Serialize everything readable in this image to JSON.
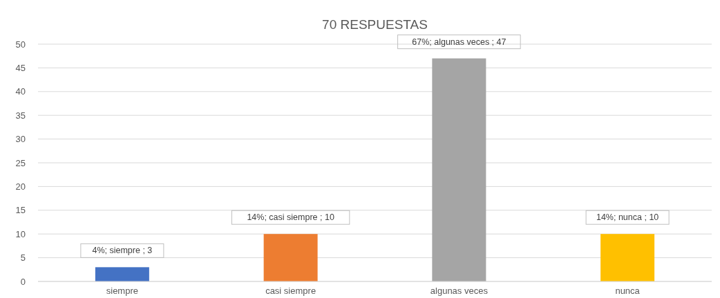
{
  "chart_data": {
    "type": "bar",
    "title": "70 RESPUESTAS",
    "categories": [
      "siempre",
      "casi siempre",
      "algunas veces",
      "nunca"
    ],
    "values": [
      3,
      10,
      47,
      10
    ],
    "colors": [
      "#4472c4",
      "#ed7d31",
      "#a5a5a5",
      "#ffc000"
    ],
    "value_labels": [
      "4%; siempre ; 3",
      "14%; casi siempre ; 10",
      "67%; algunas veces ; 47",
      "14%; nunca ; 10"
    ],
    "ylim": [
      0,
      50
    ],
    "yticks": [
      0,
      5,
      10,
      15,
      20,
      25,
      30,
      35,
      40,
      45,
      50
    ],
    "grid": "y"
  }
}
